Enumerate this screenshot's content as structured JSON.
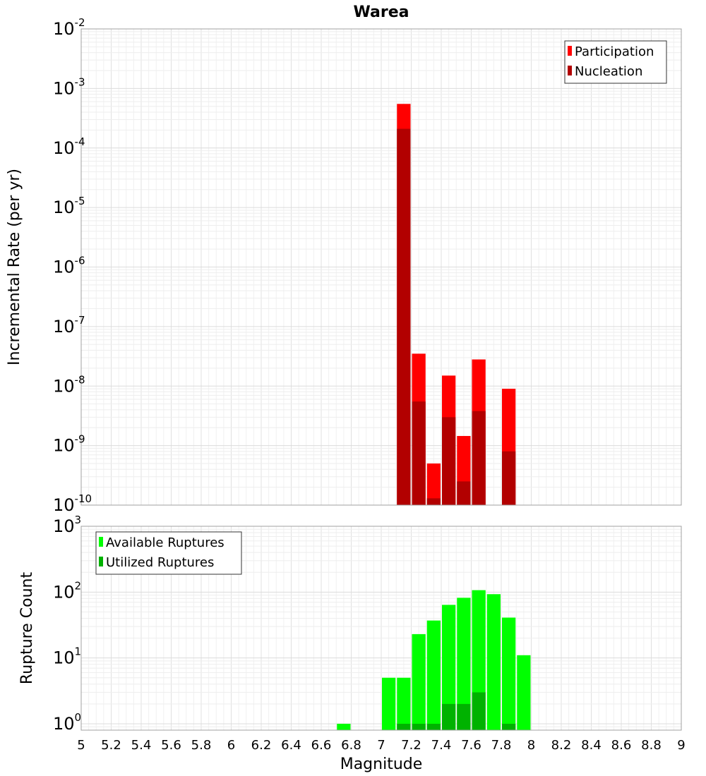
{
  "chart_data": [
    {
      "type": "bar",
      "title": "Warea",
      "xlabel": "",
      "ylabel": "Incremental Rate (per yr)",
      "yscale": "log",
      "ylim": [
        1e-10,
        0.01
      ],
      "xlim": [
        5,
        9
      ],
      "grid": true,
      "legend_position": "top-right",
      "legend": [
        "Participation",
        "Nucleation"
      ],
      "bin_width": 0.1,
      "series": [
        {
          "name": "Participation",
          "color": "#ff0000",
          "x": [
            7.15,
            7.25,
            7.35,
            7.45,
            7.55,
            7.65,
            7.85
          ],
          "values": [
            0.00055,
            3.5e-08,
            5e-10,
            1.5e-08,
            1.45e-09,
            2.8e-08,
            9e-09
          ]
        },
        {
          "name": "Nucleation",
          "color": "#b20000",
          "x": [
            7.15,
            7.25,
            7.35,
            7.45,
            7.55,
            7.65,
            7.85
          ],
          "values": [
            0.00021,
            5.5e-09,
            1.3e-10,
            3e-09,
            2.5e-10,
            3.8e-09,
            8e-10
          ]
        }
      ],
      "yticks": [
        {
          "base": "10",
          "exp": "-10"
        },
        {
          "base": "10",
          "exp": "-9"
        },
        {
          "base": "10",
          "exp": "-8"
        },
        {
          "base": "10",
          "exp": "-7"
        },
        {
          "base": "10",
          "exp": "-6"
        },
        {
          "base": "10",
          "exp": "-5"
        },
        {
          "base": "10",
          "exp": "-4"
        },
        {
          "base": "10",
          "exp": "-3"
        },
        {
          "base": "10",
          "exp": "-2"
        }
      ]
    },
    {
      "type": "bar",
      "title": "",
      "xlabel": "Magnitude",
      "ylabel": "Rupture Count",
      "yscale": "log",
      "ylim": [
        0.8,
        1000
      ],
      "xlim": [
        5,
        9
      ],
      "grid": true,
      "legend_position": "top-left",
      "legend": [
        "Available Ruptures",
        "Utilized Ruptures"
      ],
      "bin_width": 0.1,
      "series": [
        {
          "name": "Available Ruptures",
          "color": "#00ff00",
          "x": [
            6.75,
            7.05,
            7.15,
            7.25,
            7.35,
            7.45,
            7.55,
            7.65,
            7.75,
            7.85,
            7.95
          ],
          "values": [
            1,
            5,
            5,
            23,
            37,
            64,
            82,
            107,
            93,
            41,
            11
          ]
        },
        {
          "name": "Utilized Ruptures",
          "color": "#00b200",
          "x": [
            7.15,
            7.25,
            7.35,
            7.45,
            7.55,
            7.65,
            7.85
          ],
          "values": [
            1,
            1,
            1,
            2,
            2,
            3,
            1
          ]
        }
      ],
      "xticks": [
        "5",
        "5.2",
        "5.4",
        "5.6",
        "5.8",
        "6",
        "6.2",
        "6.4",
        "6.6",
        "6.8",
        "7",
        "7.2",
        "7.4",
        "7.6",
        "7.8",
        "8",
        "8.2",
        "8.4",
        "8.6",
        "8.8",
        "9"
      ],
      "yticks": [
        {
          "base": "10",
          "exp": "0"
        },
        {
          "base": "10",
          "exp": "1"
        },
        {
          "base": "10",
          "exp": "2"
        },
        {
          "base": "10",
          "exp": "3"
        }
      ]
    }
  ]
}
